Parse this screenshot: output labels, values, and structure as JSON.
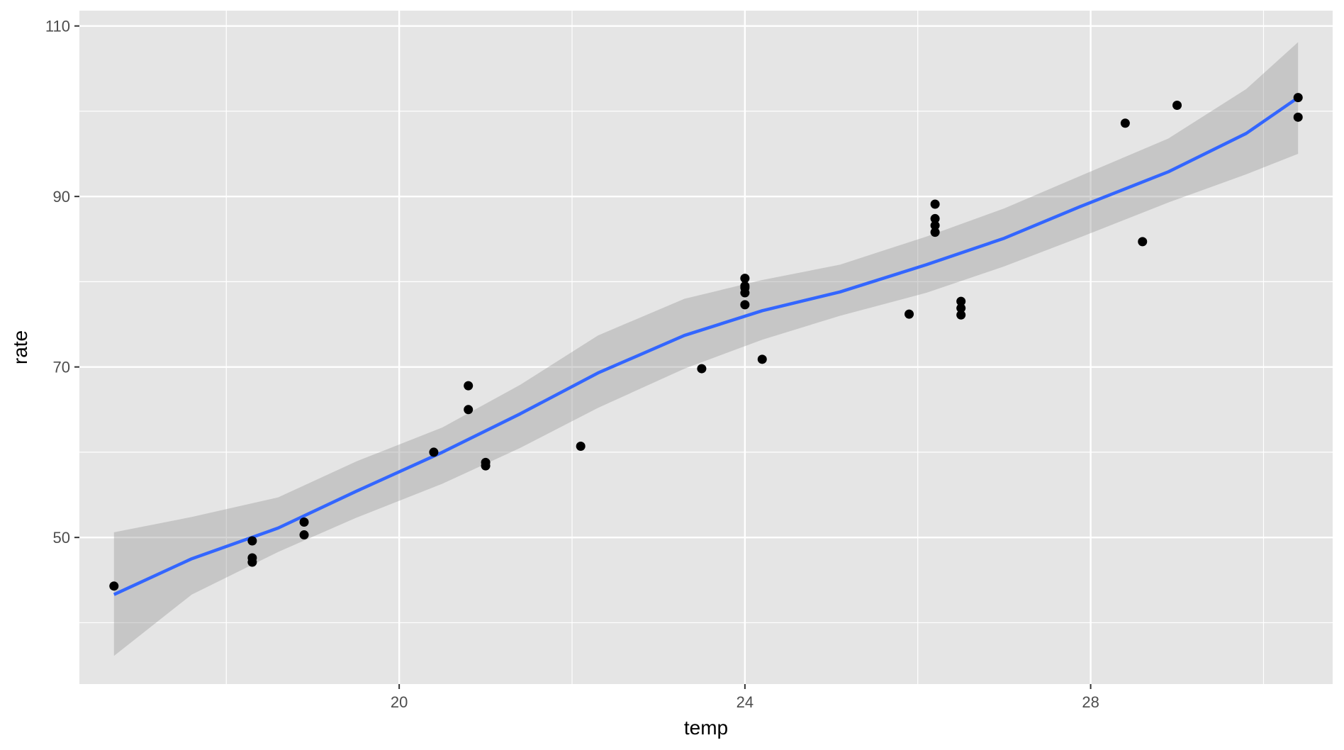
{
  "chart_data": {
    "type": "scatter",
    "xlabel": "temp",
    "ylabel": "rate",
    "xlim": [
      16.3,
      30.8
    ],
    "ylim": [
      32.8,
      111.8
    ],
    "x_ticks": [
      20,
      24,
      28
    ],
    "y_ticks": [
      50,
      70,
      90,
      110
    ],
    "x_minor_ticks": [
      18,
      22,
      26,
      30
    ],
    "y_minor_ticks": [
      40,
      60,
      80,
      100
    ],
    "grid": true,
    "points": [
      {
        "x": 16.7,
        "y": 44.3
      },
      {
        "x": 18.3,
        "y": 49.6
      },
      {
        "x": 18.3,
        "y": 47.6
      },
      {
        "x": 18.3,
        "y": 47.1
      },
      {
        "x": 18.9,
        "y": 51.8
      },
      {
        "x": 18.9,
        "y": 50.3
      },
      {
        "x": 20.4,
        "y": 60.0
      },
      {
        "x": 20.8,
        "y": 67.8
      },
      {
        "x": 20.8,
        "y": 65.0
      },
      {
        "x": 21.0,
        "y": 58.8
      },
      {
        "x": 21.0,
        "y": 58.4
      },
      {
        "x": 22.1,
        "y": 60.7
      },
      {
        "x": 23.5,
        "y": 69.8
      },
      {
        "x": 24.0,
        "y": 80.4
      },
      {
        "x": 24.0,
        "y": 79.5
      },
      {
        "x": 24.0,
        "y": 79.3
      },
      {
        "x": 24.0,
        "y": 78.7
      },
      {
        "x": 24.0,
        "y": 77.3
      },
      {
        "x": 24.2,
        "y": 70.9
      },
      {
        "x": 25.9,
        "y": 76.2
      },
      {
        "x": 26.2,
        "y": 89.1
      },
      {
        "x": 26.2,
        "y": 87.4
      },
      {
        "x": 26.2,
        "y": 86.6
      },
      {
        "x": 26.2,
        "y": 85.8
      },
      {
        "x": 26.5,
        "y": 77.7
      },
      {
        "x": 26.5,
        "y": 76.9
      },
      {
        "x": 26.5,
        "y": 76.1
      },
      {
        "x": 28.4,
        "y": 98.6
      },
      {
        "x": 28.6,
        "y": 84.7
      },
      {
        "x": 29.0,
        "y": 100.7
      },
      {
        "x": 30.4,
        "y": 101.6
      },
      {
        "x": 30.4,
        "y": 99.3
      }
    ],
    "smooth": {
      "x": [
        16.7,
        17.6,
        18.6,
        19.5,
        20.5,
        21.4,
        22.3,
        23.3,
        24.2,
        25.1,
        26.1,
        27.0,
        27.9,
        28.9,
        29.8,
        30.4
      ],
      "y": [
        43.3,
        47.5,
        51.1,
        55.4,
        60.0,
        64.5,
        69.3,
        73.7,
        76.6,
        78.8,
        82.0,
        85.1,
        88.9,
        92.9,
        97.4,
        101.6
      ],
      "lower": [
        36.1,
        43.3,
        48.3,
        52.3,
        56.3,
        60.5,
        65.2,
        69.8,
        73.2,
        76.0,
        78.7,
        81.8,
        85.3,
        89.3,
        92.6,
        95.0
      ],
      "upper": [
        50.6,
        52.4,
        54.7,
        58.9,
        62.9,
        67.9,
        73.7,
        78.0,
        80.2,
        82.0,
        85.3,
        88.6,
        92.5,
        96.8,
        102.6,
        108.1
      ]
    },
    "colors": {
      "panel": "#e5e5e5",
      "grid": "#ffffff",
      "points": "#000000",
      "line": "#3366ff",
      "ribbon": "#999999"
    }
  }
}
